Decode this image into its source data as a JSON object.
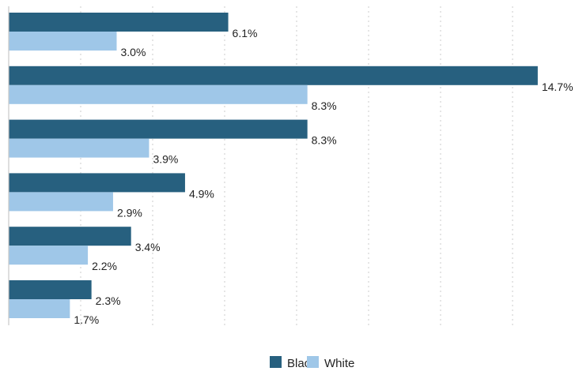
{
  "chart_data": {
    "type": "bar",
    "orientation": "horizontal",
    "categories": [
      "",
      "",
      "",
      "",
      "",
      ""
    ],
    "series": [
      {
        "name": "Black",
        "values": [
          6.1,
          14.7,
          8.3,
          4.9,
          3.4,
          2.3
        ],
        "color": "#27607f"
      },
      {
        "name": "White",
        "values": [
          3.0,
          8.3,
          3.9,
          2.9,
          2.2,
          1.7
        ],
        "color": "#9fc7e8"
      }
    ],
    "data_labels": [
      [
        "6.1%",
        "14.7%",
        "8.3%",
        "4.9%",
        "3.4%",
        "2.3%"
      ],
      [
        "3.0%",
        "8.3%",
        "3.9%",
        "2.9%",
        "2.2%",
        "1.7%"
      ]
    ],
    "xlim": [
      0,
      16
    ],
    "grid": true,
    "grid_style": "dotted vertical",
    "legend": {
      "position": "bottom-center",
      "items": [
        {
          "label": "Blac",
          "color": "#27607f"
        },
        {
          "label": "White",
          "color": "#9fc7e8"
        }
      ]
    },
    "title": "",
    "xlabel": "",
    "ylabel": ""
  }
}
